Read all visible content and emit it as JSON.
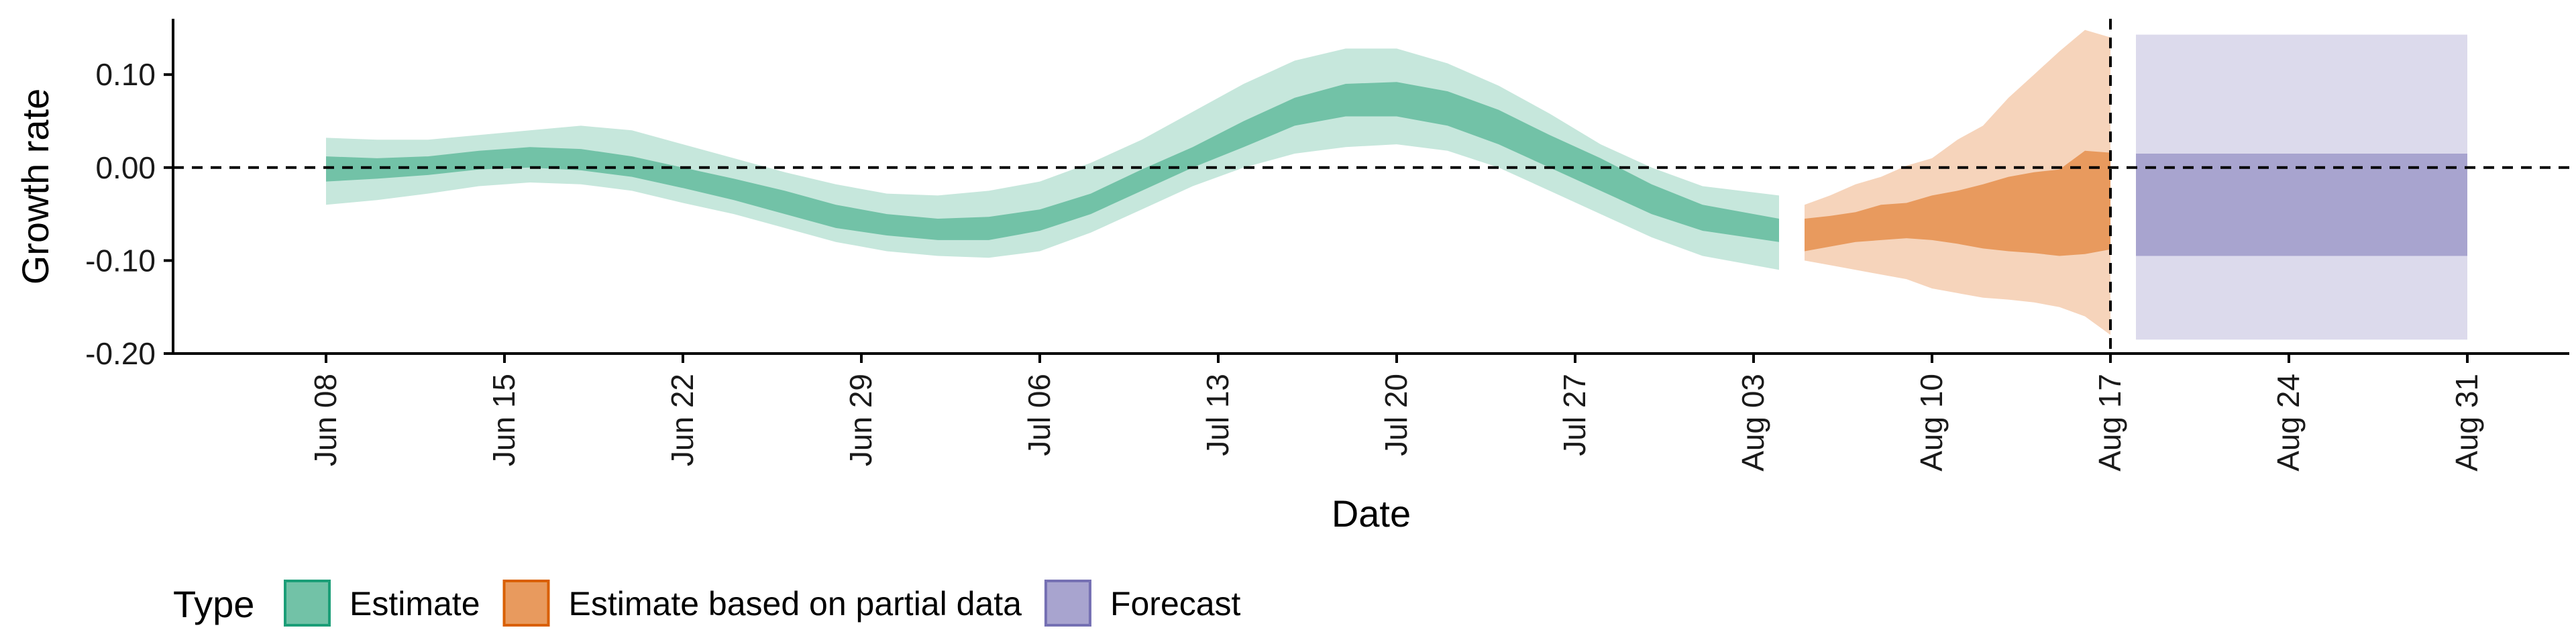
{
  "chart_data": {
    "type": "area",
    "xlabel": "Date",
    "ylabel": "Growth rate",
    "ylim": [
      -0.2,
      0.16
    ],
    "xlim": [
      "2020-06-02",
      "2020-09-04"
    ],
    "x_ticks": [
      "2020-06-08",
      "2020-06-15",
      "2020-06-22",
      "2020-06-29",
      "2020-07-06",
      "2020-07-13",
      "2020-07-20",
      "2020-07-27",
      "2020-08-03",
      "2020-08-10",
      "2020-08-17",
      "2020-08-24",
      "2020-08-31"
    ],
    "x_tick_labels": [
      "Jun 08",
      "Jun 15",
      "Jun 22",
      "Jun 29",
      "Jul 06",
      "Jul 13",
      "Jul 20",
      "Jul 27",
      "Aug 03",
      "Aug 10",
      "Aug 17",
      "Aug 24",
      "Aug 31"
    ],
    "y_ticks": [
      0.1,
      0.0,
      -0.1,
      -0.2
    ],
    "y_tick_labels": [
      "0.10",
      "0.00",
      "-0.10",
      "-0.20"
    ],
    "reference_hline": 0.0,
    "reference_vline": "2020-08-17",
    "legend": {
      "title": "Type",
      "placement": "bottom-left",
      "entries": [
        "Estimate",
        "Estimate based on partial data",
        "Forecast"
      ]
    },
    "colors": {
      "Estimate": {
        "inner": "#72c2a7",
        "outer": "#c6e7dc",
        "border": "#1b9e77"
      },
      "Estimate based on partial data": {
        "inner": "#e89a5e",
        "outer": "#f6d4bb",
        "border": "#d95f02"
      },
      "Forecast": {
        "inner": "#a8a4cf",
        "outer": "#dcdaec",
        "border": "#7570b3"
      }
    },
    "series": [
      {
        "name": "Estimate",
        "x": [
          "2020-06-08",
          "2020-06-10",
          "2020-06-12",
          "2020-06-14",
          "2020-06-16",
          "2020-06-18",
          "2020-06-20",
          "2020-06-22",
          "2020-06-24",
          "2020-06-26",
          "2020-06-28",
          "2020-06-30",
          "2020-07-02",
          "2020-07-04",
          "2020-07-06",
          "2020-07-08",
          "2020-07-10",
          "2020-07-12",
          "2020-07-14",
          "2020-07-16",
          "2020-07-18",
          "2020-07-20",
          "2020-07-22",
          "2020-07-24",
          "2020-07-26",
          "2020-07-28",
          "2020-07-30",
          "2020-08-01",
          "2020-08-04"
        ],
        "lower_outer": [
          -0.04,
          -0.035,
          -0.028,
          -0.02,
          -0.016,
          -0.018,
          -0.025,
          -0.038,
          -0.05,
          -0.065,
          -0.08,
          -0.09,
          -0.095,
          -0.097,
          -0.09,
          -0.07,
          -0.045,
          -0.02,
          0.0,
          0.015,
          0.022,
          0.025,
          0.018,
          0.0,
          -0.025,
          -0.05,
          -0.075,
          -0.095,
          -0.11
        ],
        "lower_inner": [
          -0.015,
          -0.012,
          -0.008,
          -0.002,
          0.0,
          -0.003,
          -0.01,
          -0.022,
          -0.035,
          -0.05,
          -0.065,
          -0.073,
          -0.078,
          -0.078,
          -0.068,
          -0.05,
          -0.025,
          0.0,
          0.022,
          0.045,
          0.055,
          0.055,
          0.045,
          0.025,
          0.0,
          -0.025,
          -0.05,
          -0.068,
          -0.08
        ],
        "upper_inner": [
          0.012,
          0.01,
          0.012,
          0.018,
          0.022,
          0.02,
          0.012,
          0.0,
          -0.012,
          -0.025,
          -0.04,
          -0.05,
          -0.055,
          -0.053,
          -0.045,
          -0.028,
          -0.002,
          0.022,
          0.05,
          0.075,
          0.09,
          0.092,
          0.082,
          0.062,
          0.035,
          0.01,
          -0.018,
          -0.04,
          -0.055
        ],
        "upper_outer": [
          0.032,
          0.03,
          0.03,
          0.035,
          0.04,
          0.045,
          0.04,
          0.025,
          0.01,
          -0.005,
          -0.018,
          -0.028,
          -0.03,
          -0.025,
          -0.015,
          0.005,
          0.03,
          0.06,
          0.09,
          0.115,
          0.128,
          0.128,
          0.112,
          0.088,
          0.058,
          0.025,
          0.0,
          -0.02,
          -0.03
        ]
      },
      {
        "name": "Estimate based on partial data",
        "x": [
          "2020-08-05",
          "2020-08-06",
          "2020-08-07",
          "2020-08-08",
          "2020-08-09",
          "2020-08-10",
          "2020-08-11",
          "2020-08-12",
          "2020-08-13",
          "2020-08-14",
          "2020-08-15",
          "2020-08-16",
          "2020-08-17"
        ],
        "lower_outer": [
          -0.1,
          -0.105,
          -0.11,
          -0.115,
          -0.12,
          -0.13,
          -0.135,
          -0.14,
          -0.142,
          -0.145,
          -0.15,
          -0.16,
          -0.18
        ],
        "lower_inner": [
          -0.09,
          -0.085,
          -0.08,
          -0.078,
          -0.076,
          -0.078,
          -0.082,
          -0.087,
          -0.09,
          -0.092,
          -0.095,
          -0.093,
          -0.088
        ],
        "upper_inner": [
          -0.055,
          -0.052,
          -0.048,
          -0.04,
          -0.038,
          -0.03,
          -0.025,
          -0.018,
          -0.01,
          -0.005,
          -0.002,
          0.018,
          0.016
        ],
        "upper_outer": [
          -0.04,
          -0.03,
          -0.018,
          -0.01,
          0.002,
          0.01,
          0.03,
          0.045,
          0.075,
          0.1,
          0.125,
          0.148,
          0.14
        ]
      },
      {
        "name": "Forecast",
        "x": [
          "2020-08-18",
          "2020-08-31"
        ],
        "lower_outer": [
          -0.185,
          -0.185
        ],
        "lower_inner": [
          -0.095,
          -0.095
        ],
        "upper_inner": [
          0.015,
          0.015
        ],
        "upper_outer": [
          0.143,
          0.143
        ]
      }
    ]
  }
}
